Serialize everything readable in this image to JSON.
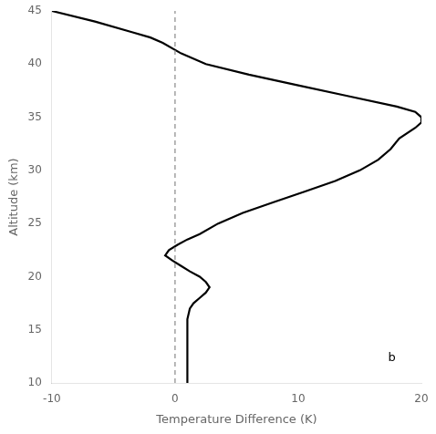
{
  "chart_data": {
    "type": "line",
    "xlabel": "Temperature Difference (K)",
    "ylabel": "Altitude (km)",
    "xlim": [
      -10,
      20
    ],
    "ylim": [
      10,
      45
    ],
    "xticks": [
      -10,
      0,
      10,
      20
    ],
    "yticks": [
      10,
      15,
      20,
      25,
      30,
      35,
      40,
      45
    ],
    "grid": false,
    "background_color": "#ffffff",
    "annotations": [
      {
        "text": "b"
      }
    ],
    "series": [
      {
        "x": [
          0,
          0
        ],
        "values": [
          10,
          45
        ],
        "color": "#888888",
        "line_style": "dashed"
      },
      {
        "x": [
          1.0,
          1.0,
          1.0,
          1.0,
          1.0,
          1.0,
          1.0,
          1.2,
          1.5,
          2.0,
          2.5,
          2.8,
          2.5,
          2.0,
          1.2,
          0.5,
          -0.2,
          -0.8,
          -0.5,
          0.2,
          1.0,
          2.0,
          3.5,
          5.5,
          8.0,
          10.5,
          13.0,
          15.0,
          16.5,
          17.5,
          18.2,
          19.5,
          20.0,
          20.0,
          19.5,
          18.0,
          14.0,
          10.0,
          6.0,
          2.5,
          0.5,
          -1.0,
          -2.0,
          -3.5,
          -6.5,
          -10.0
        ],
        "values": [
          10,
          11,
          12,
          13,
          14,
          15,
          16,
          17,
          17.5,
          18,
          18.5,
          19,
          19.5,
          20,
          20.5,
          21,
          21.5,
          22,
          22.5,
          23,
          23.5,
          24,
          25,
          26,
          27,
          28,
          29,
          30,
          31,
          32,
          33,
          34,
          34.5,
          35,
          35.5,
          36,
          37,
          38,
          39,
          40,
          41,
          42,
          42.5,
          43,
          44,
          45
        ],
        "color": "#000000",
        "line_style": "solid"
      }
    ]
  }
}
